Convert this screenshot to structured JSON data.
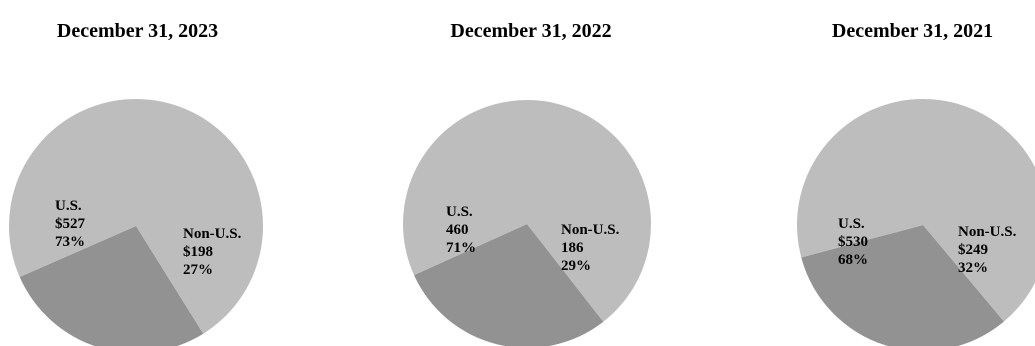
{
  "colors": {
    "us": "#bdbdbd",
    "non_us": "#929292",
    "text": "#000000",
    "background": "#ffffff"
  },
  "chart_data": [
    {
      "type": "pie",
      "title": "December 31, 2023",
      "slices": [
        {
          "name": "U.S.",
          "value": 527,
          "value_label": "$527",
          "percent_label": "73%"
        },
        {
          "name": "Non-U.S.",
          "value": 198,
          "value_label": "$198",
          "percent_label": "27%"
        }
      ]
    },
    {
      "type": "pie",
      "title": "December 31, 2022",
      "slices": [
        {
          "name": "U.S.",
          "value": 460,
          "value_label": "460",
          "percent_label": "71%"
        },
        {
          "name": "Non-U.S.",
          "value": 186,
          "value_label": "186",
          "percent_label": "29%"
        }
      ]
    },
    {
      "type": "pie",
      "title": "December 31, 2021",
      "slices": [
        {
          "name": "U.S.",
          "value": 530,
          "value_label": "$530",
          "percent_label": "68%"
        },
        {
          "name": "Non-U.S.",
          "value": 249,
          "value_label": "$249",
          "percent_label": "32%"
        }
      ]
    }
  ]
}
